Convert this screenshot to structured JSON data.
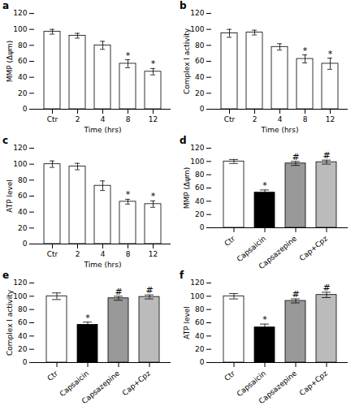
{
  "chart_data": [
    {
      "type": "bar",
      "title": "a",
      "xlabel": "Time (hrs)",
      "ylabel": "MMP (Δψm)",
      "categories": [
        "Ctr",
        "2",
        "4",
        "8",
        "12"
      ],
      "values": [
        97,
        92,
        80,
        57,
        47
      ],
      "errors": [
        3,
        3,
        5,
        5,
        4
      ],
      "color": "white",
      "ylim": [
        0,
        120
      ],
      "yticks": [
        0,
        20,
        40,
        60,
        80,
        100,
        120
      ],
      "annotations": [
        {
          "category": "8",
          "text": "*"
        },
        {
          "category": "12",
          "text": "*"
        }
      ]
    },
    {
      "type": "bar",
      "title": "b",
      "xlabel": "Time (hrs)",
      "ylabel": "Complex I activity",
      "categories": [
        "Ctr",
        "2",
        "4",
        "8",
        "12"
      ],
      "values": [
        95,
        96,
        78,
        63,
        57
      ],
      "errors": [
        5,
        3,
        4,
        5,
        7
      ],
      "color": "white",
      "ylim": [
        0,
        120
      ],
      "yticks": [
        0,
        20,
        40,
        60,
        80,
        100,
        120
      ],
      "annotations": [
        {
          "category": "8",
          "text": "*"
        },
        {
          "category": "12",
          "text": "*"
        }
      ]
    },
    {
      "type": "bar",
      "title": "c",
      "xlabel": "Time (hrs)",
      "ylabel": "ATP level",
      "categories": [
        "Ctr",
        "2",
        "4",
        "8",
        "12"
      ],
      "values": [
        100,
        97,
        73,
        53,
        50
      ],
      "errors": [
        4,
        4,
        6,
        3,
        4
      ],
      "color": "white",
      "ylim": [
        0,
        120
      ],
      "yticks": [
        0,
        20,
        40,
        60,
        80,
        100,
        120
      ],
      "annotations": [
        {
          "category": "8",
          "text": "*"
        },
        {
          "category": "12",
          "text": "*"
        }
      ]
    },
    {
      "type": "bar",
      "title": "d",
      "ylabel": "MMP (Δψm)",
      "categories": [
        "Ctr",
        "Capsaicin",
        "Capsazepine",
        "Cap+Cpz"
      ],
      "values": [
        100,
        53,
        97,
        99
      ],
      "errors": [
        3,
        4,
        3,
        3
      ],
      "colors": [
        "white",
        "black",
        "#999999",
        "#bbbbbb"
      ],
      "ylim": [
        0,
        120
      ],
      "yticks": [
        0,
        20,
        40,
        60,
        80,
        100,
        120
      ],
      "annotations": [
        {
          "category": "Capsaicin",
          "text": "*"
        },
        {
          "category": "Capsazepine",
          "text": "#"
        },
        {
          "category": "Cap+Cpz",
          "text": "#"
        }
      ]
    },
    {
      "type": "bar",
      "title": "e",
      "ylabel": "Complex I activity",
      "categories": [
        "Ctr",
        "Capsaicin",
        "Capsazepine",
        "Cap+Cpz"
      ],
      "values": [
        100,
        57,
        97,
        99
      ],
      "errors": [
        5,
        4,
        3,
        3
      ],
      "colors": [
        "white",
        "black",
        "#999999",
        "#bbbbbb"
      ],
      "ylim": [
        0,
        120
      ],
      "yticks": [
        0,
        20,
        40,
        60,
        80,
        100,
        120
      ],
      "annotations": [
        {
          "category": "Capsaicin",
          "text": "*"
        },
        {
          "category": "Capsazepine",
          "text": "#"
        },
        {
          "category": "Cap+Cpz",
          "text": "#"
        }
      ]
    },
    {
      "type": "bar",
      "title": "f",
      "ylabel": "ATP level",
      "categories": [
        "Ctr",
        "Capsaicin",
        "Capsazepine",
        "Cap+Cpz"
      ],
      "values": [
        100,
        53,
        93,
        102
      ],
      "errors": [
        4,
        5,
        3,
        4
      ],
      "colors": [
        "white",
        "black",
        "#999999",
        "#bbbbbb"
      ],
      "ylim": [
        0,
        120
      ],
      "yticks": [
        0,
        20,
        40,
        60,
        80,
        100,
        120
      ],
      "annotations": [
        {
          "category": "Capsaicin",
          "text": "*"
        },
        {
          "category": "Capsazepine",
          "text": "#"
        },
        {
          "category": "Cap+Cpz",
          "text": "#"
        }
      ]
    }
  ]
}
